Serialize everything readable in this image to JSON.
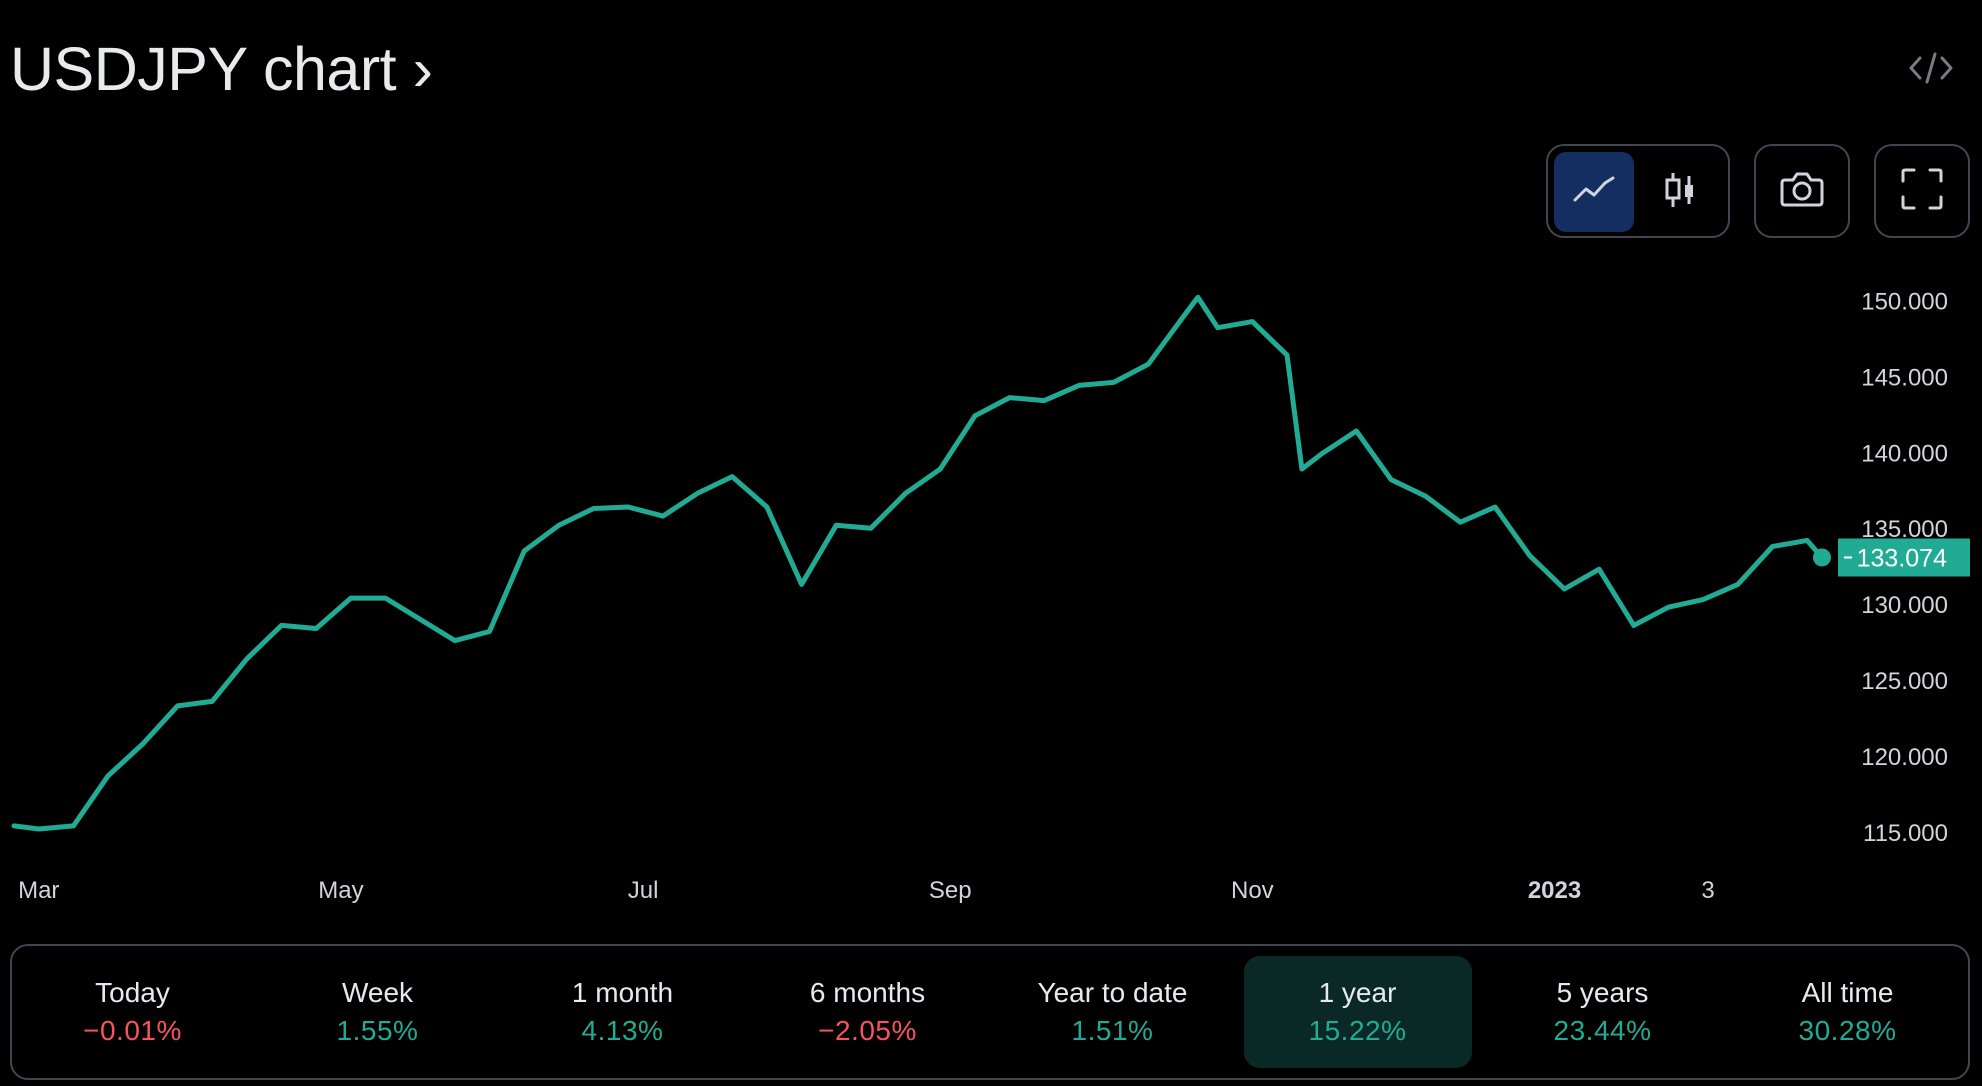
{
  "header": {
    "title": "USDJPY chart ›"
  },
  "toolbar": {
    "chart_type_buttons": [
      {
        "icon": "line-chart-icon",
        "active": true
      },
      {
        "icon": "candlestick-icon",
        "active": false
      }
    ],
    "screenshot_icon": "camera-icon",
    "fullscreen_icon": "fullscreen-icon",
    "embed_icon": "code-icon"
  },
  "colors": {
    "line": "#22ab94",
    "negative": "#f7525f",
    "active_button": "#142e61",
    "active_period": "#0a2926"
  },
  "chart_data": {
    "type": "line",
    "series": [
      {
        "x": [
          "2022-02-24",
          "2022-03-01",
          "2022-03-08",
          "2022-03-15",
          "2022-03-22",
          "2022-03-29",
          "2022-04-05",
          "2022-04-12",
          "2022-04-19",
          "2022-04-26",
          "2022-05-03",
          "2022-05-10",
          "2022-05-17",
          "2022-05-24",
          "2022-05-31",
          "2022-06-07",
          "2022-06-14",
          "2022-06-21",
          "2022-06-28",
          "2022-07-05",
          "2022-07-12",
          "2022-07-19",
          "2022-07-26",
          "2022-08-02",
          "2022-08-09",
          "2022-08-16",
          "2022-08-23",
          "2022-08-30",
          "2022-09-06",
          "2022-09-13",
          "2022-09-20",
          "2022-09-27",
          "2022-10-04",
          "2022-10-11",
          "2022-10-18",
          "2022-10-21",
          "2022-10-25",
          "2022-11-01",
          "2022-11-08",
          "2022-11-11",
          "2022-11-15",
          "2022-11-22",
          "2022-11-29",
          "2022-12-06",
          "2022-12-13",
          "2022-12-20",
          "2022-12-27",
          "2023-01-03",
          "2023-01-10",
          "2023-01-17",
          "2023-01-24",
          "2023-01-31",
          "2023-02-07",
          "2023-02-14",
          "2023-02-21",
          "2023-02-24"
        ],
        "y": [
          115.4,
          115.2,
          115.4,
          118.7,
          120.8,
          123.3,
          123.6,
          126.4,
          128.6,
          128.4,
          130.4,
          130.4,
          129.0,
          127.6,
          128.2,
          133.5,
          135.2,
          136.3,
          136.4,
          135.8,
          137.3,
          138.4,
          136.4,
          131.3,
          135.2,
          135.0,
          137.3,
          138.9,
          142.4,
          143.6,
          143.4,
          144.4,
          144.6,
          145.8,
          148.9,
          150.2,
          148.2,
          148.6,
          146.4,
          138.9,
          139.9,
          141.4,
          138.2,
          137.1,
          135.4,
          136.4,
          133.2,
          131.0,
          132.3,
          128.6,
          129.8,
          130.3,
          131.3,
          133.8,
          134.2,
          133.074
        ]
      }
    ],
    "x_tick_labels": [
      {
        "date": "2022-03-01",
        "label": "Mar",
        "bold": false
      },
      {
        "date": "2022-05-01",
        "label": "May",
        "bold": false
      },
      {
        "date": "2022-07-01",
        "label": "Jul",
        "bold": false
      },
      {
        "date": "2022-09-01",
        "label": "Sep",
        "bold": false
      },
      {
        "date": "2022-11-01",
        "label": "Nov",
        "bold": false
      },
      {
        "date": "2023-01-01",
        "label": "2023",
        "bold": true
      },
      {
        "date": "2023-02-01",
        "label": "3",
        "bold": false
      }
    ],
    "y_ticks": [
      115,
      120,
      125,
      130,
      135,
      140,
      145,
      150
    ],
    "y_tick_labels": [
      "115.000",
      "120.000",
      "125.000",
      "130.000",
      "135.000",
      "140.000",
      "145.000",
      "150.000"
    ],
    "xlim": [
      "2022-02-24",
      "2023-02-24"
    ],
    "ylim": [
      112.5,
      152
    ],
    "last_price_label": "133.074",
    "grid": false
  },
  "periods": [
    {
      "label": "Today",
      "value": "−0.01%",
      "sign": "neg",
      "active": false
    },
    {
      "label": "Week",
      "value": "1.55%",
      "sign": "pos",
      "active": false
    },
    {
      "label": "1 month",
      "value": "4.13%",
      "sign": "pos",
      "active": false
    },
    {
      "label": "6 months",
      "value": "−2.05%",
      "sign": "neg",
      "active": false
    },
    {
      "label": "Year to date",
      "value": "1.51%",
      "sign": "pos",
      "active": false
    },
    {
      "label": "1 year",
      "value": "15.22%",
      "sign": "pos",
      "active": true
    },
    {
      "label": "5 years",
      "value": "23.44%",
      "sign": "pos",
      "active": false
    },
    {
      "label": "All time",
      "value": "30.28%",
      "sign": "pos",
      "active": false
    }
  ]
}
